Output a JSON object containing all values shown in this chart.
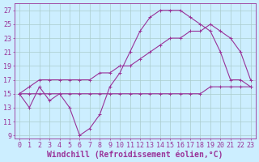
{
  "bg_color": "#cceeff",
  "line_color": "#993399",
  "grid_color": "#aacccc",
  "xlabel": "Windchill (Refroidissement éolien,°C)",
  "xlabel_fontsize": 7.0,
  "tick_fontsize": 6.0,
  "yticks": [
    9,
    11,
    13,
    15,
    17,
    19,
    21,
    23,
    25,
    27
  ],
  "xticks": [
    0,
    1,
    2,
    3,
    4,
    5,
    6,
    7,
    8,
    9,
    10,
    11,
    12,
    13,
    14,
    15,
    16,
    17,
    18,
    19,
    20,
    21,
    22,
    23
  ],
  "xlim": [
    -0.5,
    23.5
  ],
  "ylim": [
    8.5,
    28.0
  ],
  "line1_x": [
    0,
    1,
    2,
    3,
    4,
    5,
    6,
    7,
    8,
    9,
    10,
    11,
    12,
    13,
    14,
    15,
    16,
    17,
    18,
    19,
    20,
    21,
    22,
    23
  ],
  "line1_y": [
    15,
    13,
    16,
    14,
    15,
    13,
    9,
    10,
    12,
    16,
    18,
    21,
    24,
    26,
    27,
    27,
    27,
    26,
    25,
    24,
    21,
    17,
    17,
    16
  ],
  "line2_x": [
    0,
    1,
    2,
    3,
    4,
    5,
    6,
    7,
    8,
    9,
    10,
    11,
    12,
    13,
    14,
    15,
    16,
    17,
    18,
    19,
    20,
    21,
    22,
    23
  ],
  "line2_y": [
    15,
    16,
    17,
    17,
    17,
    17,
    17,
    17,
    18,
    18,
    19,
    19,
    20,
    21,
    22,
    23,
    23,
    24,
    24,
    25,
    24,
    23,
    21,
    17
  ],
  "line3_x": [
    0,
    1,
    2,
    3,
    4,
    5,
    6,
    7,
    8,
    9,
    10,
    11,
    12,
    13,
    14,
    15,
    16,
    17,
    18,
    19,
    20,
    21,
    22,
    23
  ],
  "line3_y": [
    15,
    15,
    15,
    15,
    15,
    15,
    15,
    15,
    15,
    15,
    15,
    15,
    15,
    15,
    15,
    15,
    15,
    15,
    15,
    16,
    16,
    16,
    16,
    16
  ]
}
